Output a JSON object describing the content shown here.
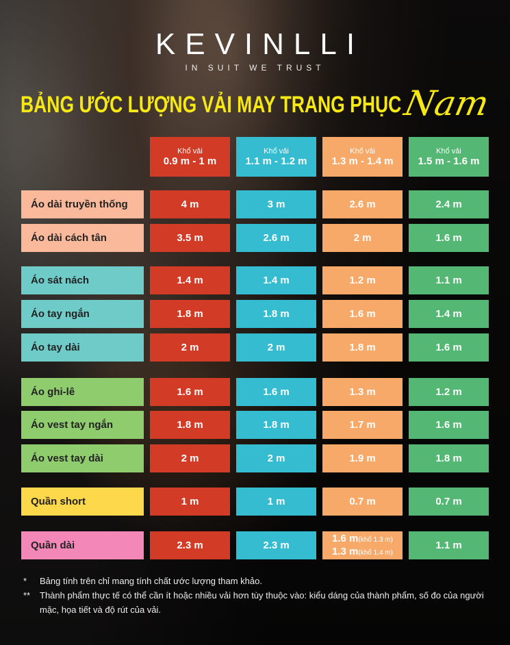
{
  "brand": {
    "name": "KEVINLLI",
    "tagline": "IN SUIT WE TRUST"
  },
  "title": {
    "main": "BẢNG ƯỚC LƯỢNG VẢI MAY TRANG PHỤC",
    "script": "Nam"
  },
  "colors": {
    "col1": "#d23b26",
    "col2": "#36bcd0",
    "col3": "#f7a96a",
    "col4": "#55b774",
    "title": "#f6e814"
  },
  "columns": [
    {
      "label": "Khổ vải",
      "range": "0.9 m - 1 m"
    },
    {
      "label": "Khổ vải",
      "range": "1.1 m - 1.2 m"
    },
    {
      "label": "Khổ vải",
      "range": "1.3 m - 1.4 m"
    },
    {
      "label": "Khổ vải",
      "range": "1.5 m - 1.6 m"
    }
  ],
  "rows": [
    {
      "item": "Áo dài truyền thống",
      "values": [
        "4 m",
        "3 m",
        "2.6 m",
        "2.4 m"
      ],
      "color": "#f9b99a"
    },
    {
      "item": "Áo dài cách tân",
      "values": [
        "3.5 m",
        "2.6 m",
        "2 m",
        "1.6 m"
      ],
      "color": "#f9b99a"
    },
    {
      "item": "Áo sát nách",
      "values": [
        "1.4 m",
        "1.4 m",
        "1.2 m",
        "1.1 m"
      ],
      "color": "#6fcbc8"
    },
    {
      "item": "Áo tay ngắn",
      "values": [
        "1.8 m",
        "1.8 m",
        "1.6 m",
        "1.4 m"
      ],
      "color": "#6fcbc8"
    },
    {
      "item": "Áo tay dài",
      "values": [
        "2 m",
        "2 m",
        "1.8 m",
        "1.6 m"
      ],
      "color": "#6fcbc8"
    },
    {
      "item": "Áo ghi-lê",
      "values": [
        "1.6 m",
        "1.6 m",
        "1.3 m",
        "1.2 m"
      ],
      "color": "#8fcc6e"
    },
    {
      "item": "Áo vest tay ngắn",
      "values": [
        "1.8 m",
        "1.8 m",
        "1.7 m",
        "1.6 m"
      ],
      "color": "#8fcc6e"
    },
    {
      "item": "Áo vest tay dài",
      "values": [
        "2 m",
        "2 m",
        "1.9 m",
        "1.8 m"
      ],
      "color": "#8fcc6e"
    },
    {
      "item": "Quần short",
      "values": [
        "1 m",
        "1 m",
        "0.7 m",
        "0.7 m"
      ],
      "color": "#fcd84a"
    },
    {
      "item": "Quần dài",
      "values": [
        "2.3 m",
        "2.3 m",
        "",
        "1.1 m"
      ],
      "color": "#f387b8"
    }
  ],
  "quan_dai_col3": [
    {
      "value": "1.6 m",
      "note": "(khổ 1.3 m)"
    },
    {
      "value": "1.3 m",
      "note": "(khổ 1.4 m)"
    }
  ],
  "notes": [
    {
      "mark": "*",
      "text": "Bảng tính trên chỉ mang tính chất ước lượng tham khảo."
    },
    {
      "mark": "**",
      "text": "Thành phẩm thực tế có thể cần ít hoặc nhiều vải hơn tùy thuộc vào: kiểu dáng của thành phẩm, số đo của người mặc, họa tiết và độ rút của vải."
    }
  ]
}
